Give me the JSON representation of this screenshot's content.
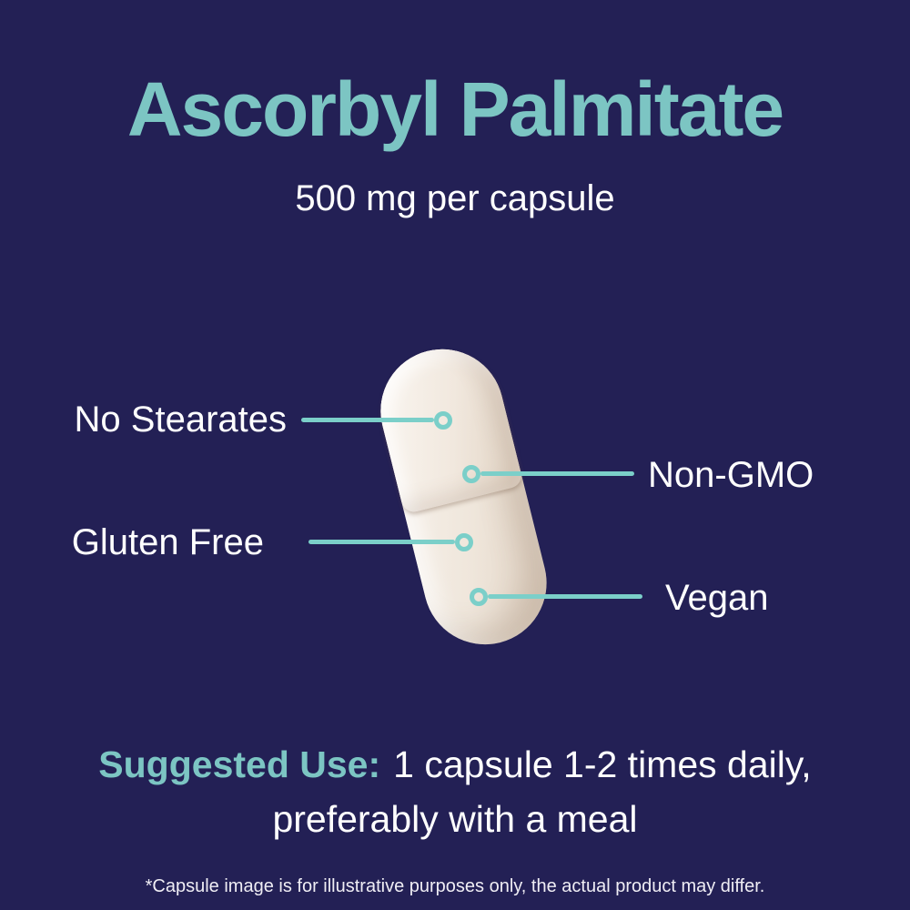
{
  "page": {
    "background_color": "#232055",
    "accent_teal": "#7CC5C3",
    "callout_teal": "#7BCFC9",
    "capsule_color": "#EFE6DB",
    "text_color": "#FFFFFF"
  },
  "header": {
    "title": "Ascorbyl Palmitate",
    "subtitle": "500 mg per capsule"
  },
  "capsule": {
    "description": "white two-piece supplement capsule, tilted"
  },
  "callouts": [
    {
      "label": "No Stearates",
      "side": "left"
    },
    {
      "label": "Non-GMO",
      "side": "right"
    },
    {
      "label": "Gluten Free",
      "side": "left"
    },
    {
      "label": "Vegan",
      "side": "right"
    }
  ],
  "suggested_use": {
    "prefix": "Suggested Use:",
    "line1_rest": "1 capsule 1-2 times daily,",
    "line2": "preferably with a meal"
  },
  "disclaimer": "*Capsule image is for illustrative purposes only, the actual product may differ."
}
